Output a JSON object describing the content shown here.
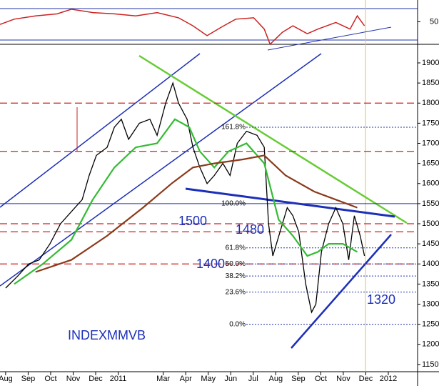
{
  "chart_data": [
    {
      "type": "line",
      "title": "INDEXMMVB",
      "xlim": [
        -0.25,
        18.3
      ],
      "xticks": [
        {
          "value": 0,
          "label": "Aug"
        },
        {
          "value": 1,
          "label": "Sep"
        },
        {
          "value": 2,
          "label": "Oct"
        },
        {
          "value": 3,
          "label": "Nov"
        },
        {
          "value": 4,
          "label": "Dec"
        },
        {
          "value": 5,
          "label": "2011"
        },
        {
          "value": 7,
          "label": "Mar"
        },
        {
          "value": 8,
          "label": "Apr"
        },
        {
          "value": 9,
          "label": "May"
        },
        {
          "value": 10,
          "label": "Jun"
        },
        {
          "value": 11,
          "label": "Jul"
        },
        {
          "value": 12,
          "label": "Aug"
        },
        {
          "value": 13,
          "label": "Sep"
        },
        {
          "value": 14,
          "label": "Oct"
        },
        {
          "value": 15,
          "label": "Nov"
        },
        {
          "value": 16,
          "label": "Dec"
        },
        {
          "value": 17,
          "label": "2012"
        }
      ],
      "ylim": [
        1132,
        1932
      ],
      "yticks": [
        1150,
        1200,
        1250,
        1300,
        1350,
        1400,
        1450,
        1500,
        1550,
        1600,
        1650,
        1700,
        1750,
        1800,
        1850,
        1900
      ],
      "series": [
        {
          "color": "#000000",
          "x": [
            0,
            0.54,
            1.02,
            1.49,
            1.97,
            2.44,
            2.92,
            3.4,
            3.71,
            4.03,
            4.51,
            4.83,
            5.14,
            5.46,
            5.94,
            6.41,
            6.73,
            7.11,
            7.43,
            7.68,
            8.06,
            8.32,
            8.63,
            8.95,
            9.27,
            9.65,
            9.97,
            10.29,
            10.7,
            11.17,
            11.49,
            11.68,
            11.87,
            12.19,
            12.51,
            12.76,
            13.02,
            13.33,
            13.59,
            13.78,
            14.03,
            14.35,
            14.67,
            14.98,
            15.24,
            15.49,
            15.75,
            15.94
          ],
          "values": [
            1340,
            1370,
            1400,
            1410,
            1450,
            1500,
            1530,
            1560,
            1620,
            1670,
            1690,
            1740,
            1760,
            1710,
            1750,
            1760,
            1720,
            1800,
            1850,
            1800,
            1760,
            1690,
            1640,
            1600,
            1620,
            1650,
            1620,
            1700,
            1730,
            1720,
            1690,
            1500,
            1420,
            1480,
            1540,
            1520,
            1480,
            1350,
            1280,
            1300,
            1430,
            1500,
            1540,
            1500,
            1410,
            1520,
            1470,
            1420
          ]
        },
        {
          "color": "#33bb33",
          "x": [
            0.38,
            1.65,
            2.92,
            3.87,
            4.83,
            5.78,
            6.73,
            7.52,
            8.16,
            8.63,
            9.27,
            9.9,
            10.7,
            11.49,
            12.13,
            12.76,
            13.4,
            13.87,
            14.35,
            14.98,
            15.62
          ],
          "values": [
            1350,
            1400,
            1460,
            1560,
            1640,
            1690,
            1700,
            1760,
            1740,
            1680,
            1640,
            1680,
            1700,
            1650,
            1510,
            1470,
            1420,
            1430,
            1450,
            1450,
            1430
          ]
        },
        {
          "color": "#8b3a1a",
          "x": [
            1.33,
            2.92,
            4.51,
            6.1,
            7.37,
            8.32,
            9.27,
            10.54,
            11.49,
            12.44,
            13.71,
            14.67,
            15.62
          ],
          "values": [
            1380,
            1410,
            1470,
            1540,
            1600,
            1640,
            1650,
            1660,
            1670,
            1620,
            1580,
            1560,
            1540
          ]
        }
      ],
      "levels": [
        1800,
        1680,
        1500,
        1480,
        1400
      ],
      "level_color": "#cc2222",
      "fib_levels": [
        {
          "value": 1740,
          "label": "161.8%"
        },
        {
          "value": 1550,
          "label": "100.0%"
        },
        {
          "value": 1440,
          "label": "61.8%"
        },
        {
          "value": 1400,
          "label": "50.0%"
        },
        {
          "value": 1370,
          "label": "38.2%"
        },
        {
          "value": 1330,
          "label": "23.6%"
        },
        {
          "value": 1250,
          "label": "0.0%"
        }
      ],
      "annotations": [
        "1500",
        "1480",
        "1400",
        "1320"
      ]
    },
    {
      "type": "line",
      "ylim": [
        19,
        80
      ],
      "yticks": [
        50
      ],
      "series": [
        {
          "color": "#cc2222",
          "x": [
            -0.25,
            0.38,
            1.33,
            2.29,
            2.92,
            3.87,
            4.83,
            5.78,
            6.73,
            7.68,
            8.32,
            8.95,
            9.59,
            10.22,
            11.02,
            11.49,
            11.75,
            12.29,
            12.76,
            13.4,
            13.87,
            14.67,
            15.3,
            15.62,
            15.94
          ],
          "values": [
            46.4,
            53.6,
            58.2,
            60.9,
            67.3,
            62.7,
            60.9,
            58.2,
            62.7,
            55.5,
            44.5,
            30.9,
            42.7,
            53.6,
            55.5,
            40,
            19.1,
            35.5,
            44.5,
            33.6,
            40,
            49.1,
            40,
            58.2,
            44.5
          ]
        }
      ]
    }
  ]
}
